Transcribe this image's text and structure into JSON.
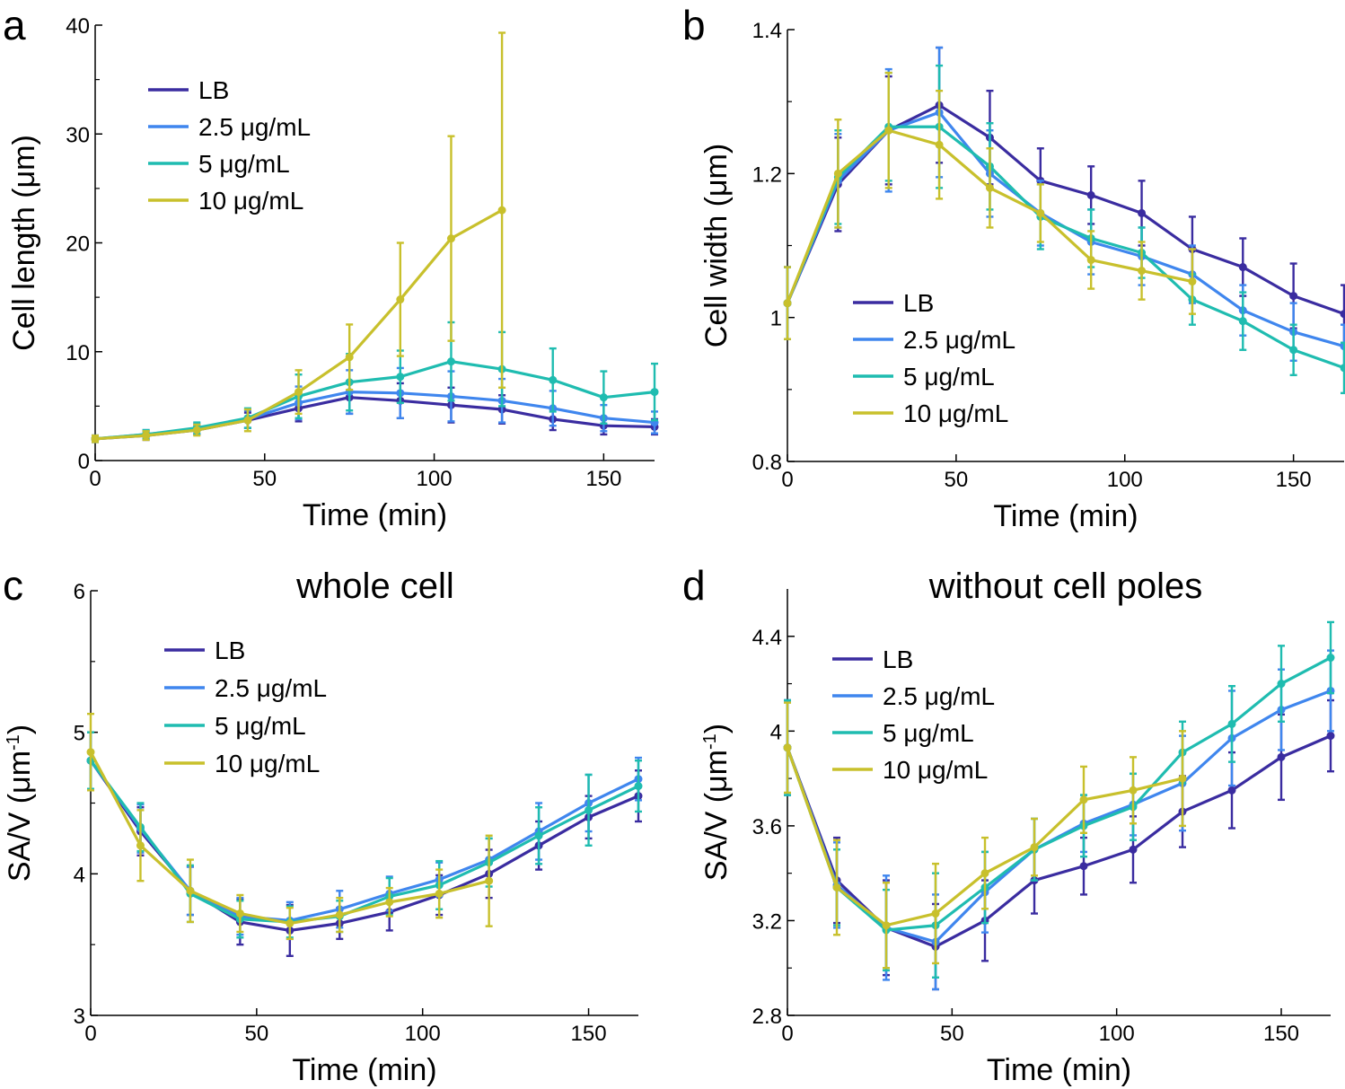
{
  "figure_labels": {
    "a": "a",
    "b": "b",
    "c": "c",
    "d": "d"
  },
  "colors": {
    "LB": "#3a2ca0",
    "2.5": "#3f86ee",
    "5": "#1fbcb0",
    "10": "#c8c02c"
  },
  "legend": [
    "LB",
    "2.5 μg/mL",
    "5 μg/mL",
    "10 μg/mL"
  ],
  "chart_data": [
    {
      "type": "line",
      "panel": "a",
      "title": "",
      "xlabel": "Time (min)",
      "ylabel": "Cell length (μm)",
      "xlim": [
        0,
        165
      ],
      "ylim": [
        0,
        40
      ],
      "xticks": [
        0,
        50,
        100,
        150
      ],
      "yticks": [
        0,
        10,
        20,
        30,
        40
      ],
      "legend_position": "top-left",
      "series": [
        {
          "name": "LB",
          "x": [
            0,
            15,
            30,
            45,
            60,
            75,
            90,
            105,
            120,
            135,
            150,
            165
          ],
          "values": [
            2.0,
            2.3,
            2.8,
            3.7,
            4.8,
            5.8,
            5.5,
            5.1,
            4.7,
            3.8,
            3.2,
            3.1
          ],
          "errors": [
            0.3,
            0.4,
            0.4,
            0.7,
            1.2,
            1.5,
            1.6,
            1.6,
            1.3,
            1.0,
            0.8,
            0.7
          ]
        },
        {
          "name": "2.5 μg/mL",
          "x": [
            0,
            15,
            30,
            45,
            60,
            75,
            90,
            105,
            120,
            135,
            150,
            165
          ],
          "values": [
            2.0,
            2.4,
            2.9,
            3.8,
            5.3,
            6.3,
            6.2,
            5.9,
            5.5,
            4.8,
            3.9,
            3.5
          ],
          "errors": [
            0.3,
            0.4,
            0.5,
            0.8,
            1.5,
            2.0,
            2.3,
            2.3,
            2.0,
            1.6,
            1.2,
            1.0
          ]
        },
        {
          "name": "5 μg/mL",
          "x": [
            0,
            15,
            30,
            45,
            60,
            75,
            90,
            105,
            120,
            135,
            150,
            165
          ],
          "values": [
            2.0,
            2.4,
            3.0,
            3.9,
            5.9,
            7.2,
            7.7,
            9.1,
            8.4,
            7.4,
            5.8,
            6.3
          ],
          "errors": [
            0.3,
            0.4,
            0.5,
            0.9,
            2.0,
            2.6,
            2.4,
            3.6,
            3.4,
            2.9,
            2.4,
            2.6
          ]
        },
        {
          "name": "10 μg/mL",
          "x": [
            0,
            15,
            30,
            45,
            60,
            75,
            90,
            105,
            120
          ],
          "values": [
            2.0,
            2.3,
            2.8,
            3.7,
            6.3,
            9.5,
            14.8,
            20.4,
            23.0
          ],
          "errors": [
            0.3,
            0.4,
            0.5,
            1.0,
            2.0,
            3.0,
            5.2,
            9.4,
            16.3
          ]
        }
      ]
    },
    {
      "type": "line",
      "panel": "b",
      "title": "",
      "xlabel": "Time (min)",
      "ylabel": "Cell width (μm)",
      "xlim": [
        0,
        165
      ],
      "ylim": [
        0.8,
        1.4
      ],
      "xticks": [
        0,
        50,
        100,
        150
      ],
      "yticks": [
        0.8,
        1,
        1.2,
        1.4
      ],
      "yticklabels": [
        "0.8",
        "1",
        "1.2",
        "1.4"
      ],
      "legend_position": "bottom-left",
      "series": [
        {
          "name": "LB",
          "x": [
            0,
            15,
            30,
            45,
            60,
            75,
            90,
            105,
            120,
            135,
            150,
            165
          ],
          "values": [
            1.02,
            1.185,
            1.26,
            1.295,
            1.25,
            1.19,
            1.17,
            1.145,
            1.095,
            1.07,
            1.03,
            1.005
          ],
          "errors": [
            0.05,
            0.065,
            0.075,
            0.08,
            0.065,
            0.045,
            0.04,
            0.045,
            0.045,
            0.04,
            0.045,
            0.04
          ]
        },
        {
          "name": "2.5 μg/mL",
          "x": [
            0,
            15,
            30,
            45,
            60,
            75,
            90,
            105,
            120,
            135,
            150,
            165
          ],
          "values": [
            1.02,
            1.19,
            1.26,
            1.285,
            1.2,
            1.145,
            1.105,
            1.085,
            1.06,
            1.01,
            0.98,
            0.96
          ],
          "errors": [
            0.05,
            0.065,
            0.085,
            0.09,
            0.06,
            0.045,
            0.045,
            0.04,
            0.04,
            0.035,
            0.04,
            0.03
          ]
        },
        {
          "name": "5 μg/mL",
          "x": [
            0,
            15,
            30,
            45,
            60,
            75,
            90,
            105,
            120,
            135,
            150,
            165
          ],
          "values": [
            1.02,
            1.195,
            1.265,
            1.265,
            1.21,
            1.14,
            1.11,
            1.09,
            1.025,
            0.995,
            0.955,
            0.93
          ],
          "errors": [
            0.05,
            0.065,
            0.075,
            0.085,
            0.06,
            0.045,
            0.04,
            0.035,
            0.035,
            0.04,
            0.035,
            0.035
          ]
        },
        {
          "name": "10 μg/mL",
          "x": [
            0,
            15,
            30,
            45,
            60,
            75,
            90,
            105,
            120
          ],
          "values": [
            1.02,
            1.2,
            1.26,
            1.24,
            1.18,
            1.145,
            1.08,
            1.065,
            1.05
          ],
          "errors": [
            0.05,
            0.075,
            0.08,
            0.075,
            0.055,
            0.04,
            0.04,
            0.04,
            0.045
          ]
        }
      ]
    },
    {
      "type": "line",
      "panel": "c",
      "title": "whole cell",
      "xlabel": "Time (min)",
      "ylabel": "SA/V (μm",
      "ylabel_superscript": "-1",
      "ylabel_close": ")",
      "xlim": [
        0,
        165
      ],
      "ylim": [
        3,
        6
      ],
      "xticks": [
        0,
        50,
        100,
        150
      ],
      "yticks": [
        3,
        4,
        5,
        6
      ],
      "legend_position": "top-left",
      "series": [
        {
          "name": "LB",
          "x": [
            0,
            15,
            30,
            45,
            60,
            75,
            90,
            105,
            120,
            135,
            150,
            165
          ],
          "values": [
            4.8,
            4.3,
            3.88,
            3.66,
            3.6,
            3.65,
            3.73,
            3.85,
            4.0,
            4.2,
            4.4,
            4.55
          ],
          "errors": [
            0.2,
            0.17,
            0.17,
            0.16,
            0.18,
            0.11,
            0.13,
            0.14,
            0.17,
            0.17,
            0.15,
            0.18
          ]
        },
        {
          "name": "2.5 μg/mL",
          "x": [
            0,
            15,
            30,
            45,
            60,
            75,
            90,
            105,
            120,
            135,
            150,
            165
          ],
          "values": [
            4.8,
            4.32,
            3.88,
            3.7,
            3.67,
            3.75,
            3.86,
            3.96,
            4.1,
            4.3,
            4.5,
            4.67
          ],
          "errors": [
            0.2,
            0.17,
            0.17,
            0.13,
            0.13,
            0.13,
            0.12,
            0.12,
            0.15,
            0.2,
            0.2,
            0.15
          ]
        },
        {
          "name": "5 μg/mL",
          "x": [
            0,
            15,
            30,
            45,
            60,
            75,
            90,
            105,
            120,
            135,
            150,
            165
          ],
          "values": [
            4.8,
            4.33,
            3.86,
            3.68,
            3.66,
            3.7,
            3.84,
            3.92,
            4.08,
            4.27,
            4.45,
            4.62
          ],
          "errors": [
            0.2,
            0.17,
            0.2,
            0.13,
            0.11,
            0.11,
            0.13,
            0.17,
            0.17,
            0.2,
            0.25,
            0.18
          ]
        },
        {
          "name": "10 μg/mL",
          "x": [
            0,
            15,
            30,
            45,
            60,
            75,
            90,
            105,
            120
          ],
          "values": [
            4.86,
            4.2,
            3.88,
            3.72,
            3.65,
            3.71,
            3.8,
            3.86,
            3.95
          ],
          "errors": [
            0.27,
            0.25,
            0.22,
            0.13,
            0.11,
            0.12,
            0.1,
            0.17,
            0.32
          ]
        }
      ]
    },
    {
      "type": "line",
      "panel": "d",
      "title": "without cell poles",
      "xlabel": "Time (min)",
      "ylabel": "SA/V (μm",
      "ylabel_superscript": "-1",
      "ylabel_close": ")",
      "xlim": [
        0,
        165
      ],
      "ylim": [
        2.8,
        4.6
      ],
      "xticks": [
        0,
        50,
        100,
        150
      ],
      "yticks": [
        2.8,
        3.2,
        3.6,
        4,
        4.4
      ],
      "yticklabels": [
        "2.8",
        "3.2",
        "3.6",
        "4",
        "4.4"
      ],
      "legend_position": "top-left",
      "series": [
        {
          "name": "LB",
          "x": [
            0,
            15,
            30,
            45,
            60,
            75,
            90,
            105,
            120,
            135,
            150,
            165
          ],
          "values": [
            3.93,
            3.37,
            3.17,
            3.09,
            3.2,
            3.37,
            3.43,
            3.5,
            3.66,
            3.75,
            3.89,
            3.98
          ],
          "errors": [
            0.2,
            0.18,
            0.2,
            0.18,
            0.17,
            0.14,
            0.12,
            0.14,
            0.15,
            0.16,
            0.18,
            0.15
          ]
        },
        {
          "name": "2.5 μg/mL",
          "x": [
            0,
            15,
            30,
            45,
            60,
            75,
            90,
            105,
            120,
            135,
            150,
            165
          ],
          "values": [
            3.93,
            3.35,
            3.17,
            3.11,
            3.32,
            3.5,
            3.61,
            3.69,
            3.78,
            3.97,
            4.09,
            4.17
          ],
          "errors": [
            0.2,
            0.18,
            0.22,
            0.2,
            0.17,
            0.13,
            0.12,
            0.13,
            0.2,
            0.2,
            0.17,
            0.17
          ]
        },
        {
          "name": "5 μg/mL",
          "x": [
            0,
            15,
            30,
            45,
            60,
            75,
            90,
            105,
            120,
            135,
            150,
            165
          ],
          "values": [
            3.93,
            3.34,
            3.16,
            3.18,
            3.34,
            3.5,
            3.6,
            3.68,
            3.91,
            4.03,
            4.2,
            4.31
          ],
          "errors": [
            0.2,
            0.16,
            0.17,
            0.22,
            0.15,
            0.13,
            0.13,
            0.14,
            0.13,
            0.16,
            0.16,
            0.15
          ]
        },
        {
          "name": "10 μg/mL",
          "x": [
            0,
            15,
            30,
            45,
            60,
            75,
            90,
            105,
            120
          ],
          "values": [
            3.93,
            3.34,
            3.18,
            3.23,
            3.4,
            3.51,
            3.71,
            3.75,
            3.8
          ],
          "errors": [
            0.19,
            0.2,
            0.18,
            0.21,
            0.15,
            0.12,
            0.14,
            0.14,
            0.2
          ]
        }
      ]
    }
  ]
}
